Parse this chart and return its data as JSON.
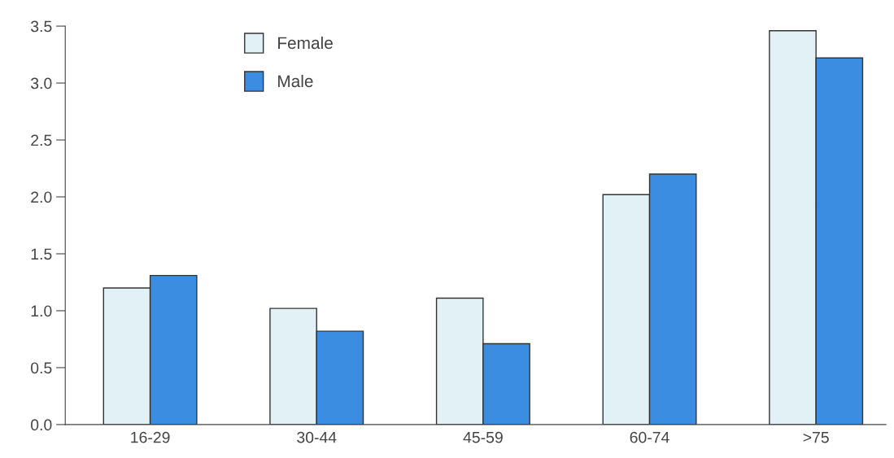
{
  "chart_data": {
    "type": "bar",
    "categories": [
      "16-29",
      "30-44",
      "45-59",
      "60-74",
      ">75"
    ],
    "series": [
      {
        "name": "Female",
        "color": "#e2f1f5",
        "values": [
          1.2,
          1.02,
          1.11,
          2.02,
          3.46
        ]
      },
      {
        "name": "Male",
        "color": "#3a8de0",
        "values": [
          1.31,
          0.82,
          0.71,
          2.2,
          3.22
        ]
      }
    ],
    "ylim": [
      0,
      3.5
    ],
    "yticks": [
      {
        "value": 0,
        "label": "0.0"
      },
      {
        "value": 0.5,
        "label": "0.5"
      },
      {
        "value": 1,
        "label": "1.0"
      },
      {
        "value": 1.5,
        "label": "1.5"
      },
      {
        "value": 2,
        "label": "2.0"
      },
      {
        "value": 2.5,
        "label": "2.5"
      },
      {
        "value": 3,
        "label": "3.0"
      },
      {
        "value": 3.5,
        "label": "3.5"
      }
    ],
    "grid": false,
    "legend": "top left"
  }
}
